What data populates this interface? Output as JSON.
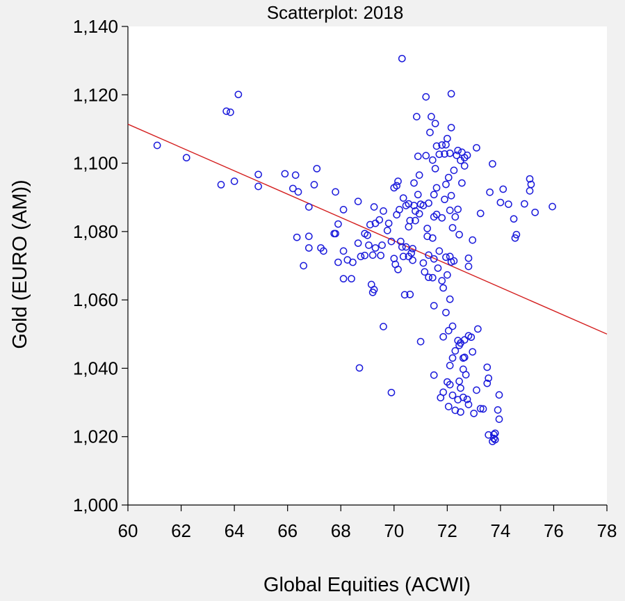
{
  "chart_data": {
    "type": "scatter",
    "title": "Scatterplot: 2018",
    "xlabel": "Global Equities (ACWI)",
    "ylabel": "Gold (EURO (AM))",
    "xlim": [
      60,
      78
    ],
    "ylim": [
      1000,
      1140
    ],
    "x_ticks": [
      60,
      62,
      64,
      66,
      68,
      70,
      72,
      74,
      76,
      78
    ],
    "x_tick_labels": [
      "60",
      "62",
      "64",
      "66",
      "68",
      "70",
      "72",
      "74",
      "76",
      "78"
    ],
    "y_ticks": [
      1000,
      1020,
      1040,
      1060,
      1080,
      1100,
      1120,
      1140
    ],
    "y_tick_labels": [
      "1,000",
      "1,020",
      "1,040",
      "1,060",
      "1,080",
      "1,100",
      "1,120",
      "1,140"
    ],
    "grid": false,
    "colors": {
      "points": "#1a1adb",
      "fit_line": "#d42020",
      "background": "#f1f1f1",
      "plot_area": "#ffffff"
    },
    "series": [
      {
        "marker": "open-circle",
        "points": [
          [
            61.1,
            1105.2
          ],
          [
            62.2,
            1101.6
          ],
          [
            63.5,
            1093.7
          ],
          [
            64.0,
            1094.7
          ],
          [
            63.7,
            1115.2
          ],
          [
            63.85,
            1114.9
          ],
          [
            64.15,
            1120.1
          ],
          [
            64.9,
            1096.7
          ],
          [
            64.9,
            1093.2
          ],
          [
            65.9,
            1096.9
          ],
          [
            66.2,
            1092.6
          ],
          [
            66.3,
            1096.5
          ],
          [
            66.4,
            1091.6
          ],
          [
            66.35,
            1078.3
          ],
          [
            66.6,
            1070.0
          ],
          [
            66.8,
            1087.2
          ],
          [
            66.8,
            1078.6
          ],
          [
            66.8,
            1075.2
          ],
          [
            67.0,
            1093.7
          ],
          [
            67.1,
            1098.4
          ],
          [
            67.25,
            1075.2
          ],
          [
            67.35,
            1074.3
          ],
          [
            67.75,
            1079.4
          ],
          [
            67.8,
            1079.4
          ],
          [
            67.8,
            1091.6
          ],
          [
            67.9,
            1082.2
          ],
          [
            67.9,
            1071.0
          ],
          [
            68.1,
            1074.3
          ],
          [
            68.1,
            1086.4
          ],
          [
            68.1,
            1066.2
          ],
          [
            68.25,
            1071.7
          ],
          [
            68.4,
            1066.2
          ],
          [
            68.45,
            1071.0
          ],
          [
            68.65,
            1088.8
          ],
          [
            68.65,
            1076.6
          ],
          [
            68.75,
            1072.7
          ],
          [
            68.7,
            1040.1
          ],
          [
            68.9,
            1073.0
          ],
          [
            68.9,
            1079.4
          ],
          [
            69.0,
            1078.9
          ],
          [
            69.05,
            1076.0
          ],
          [
            69.1,
            1082.0
          ],
          [
            69.15,
            1064.5
          ],
          [
            69.2,
            1073.1
          ],
          [
            69.25,
            1087.2
          ],
          [
            69.2,
            1062.2
          ],
          [
            69.25,
            1063.0
          ],
          [
            69.3,
            1075.2
          ],
          [
            69.3,
            1082.4
          ],
          [
            69.45,
            1083.4
          ],
          [
            69.5,
            1073.0
          ],
          [
            69.55,
            1076.0
          ],
          [
            69.6,
            1052.2
          ],
          [
            69.6,
            1086.0
          ],
          [
            69.75,
            1080.3
          ],
          [
            69.8,
            1082.4
          ],
          [
            69.9,
            1077.1
          ],
          [
            69.9,
            1032.9
          ],
          [
            70.0,
            1092.8
          ],
          [
            70.0,
            1072.1
          ],
          [
            70.05,
            1070.4
          ],
          [
            70.1,
            1093.4
          ],
          [
            70.1,
            1084.9
          ],
          [
            70.15,
            1094.7
          ],
          [
            70.15,
            1068.9
          ],
          [
            70.2,
            1086.4
          ],
          [
            70.25,
            1077.1
          ],
          [
            70.3,
            1075.5
          ],
          [
            70.35,
            1089.8
          ],
          [
            70.35,
            1072.7
          ],
          [
            70.3,
            1130.6
          ],
          [
            70.45,
            1087.6
          ],
          [
            70.4,
            1061.5
          ],
          [
            70.45,
            1075.5
          ],
          [
            70.55,
            1081.4
          ],
          [
            70.55,
            1088.1
          ],
          [
            70.55,
            1072.7
          ],
          [
            70.6,
            1061.6
          ],
          [
            70.6,
            1083.2
          ],
          [
            70.65,
            1073.7
          ],
          [
            70.7,
            1075.0
          ],
          [
            70.7,
            1071.6
          ],
          [
            70.75,
            1094.2
          ],
          [
            70.75,
            1087.6
          ],
          [
            70.8,
            1086.0
          ],
          [
            70.8,
            1083.2
          ],
          [
            70.85,
            1113.6
          ],
          [
            70.9,
            1102.0
          ],
          [
            70.9,
            1090.8
          ],
          [
            70.95,
            1096.5
          ],
          [
            70.95,
            1085.2
          ],
          [
            71.0,
            1088.0
          ],
          [
            71.0,
            1047.8
          ],
          [
            71.1,
            1087.6
          ],
          [
            71.1,
            1070.8
          ],
          [
            71.15,
            1068.2
          ],
          [
            71.2,
            1119.4
          ],
          [
            71.2,
            1102.2
          ],
          [
            71.25,
            1080.9
          ],
          [
            71.25,
            1078.6
          ],
          [
            71.3,
            1073.1
          ],
          [
            71.3,
            1066.6
          ],
          [
            71.3,
            1088.3
          ],
          [
            71.35,
            1109.0
          ],
          [
            71.4,
            1113.6
          ],
          [
            71.45,
            1100.9
          ],
          [
            71.45,
            1078.1
          ],
          [
            71.45,
            1066.5
          ],
          [
            71.5,
            1084.3
          ],
          [
            71.5,
            1058.3
          ],
          [
            71.5,
            1038.0
          ],
          [
            71.5,
            1090.8
          ],
          [
            71.5,
            1072.0
          ],
          [
            71.55,
            1111.6
          ],
          [
            71.55,
            1098.4
          ],
          [
            71.6,
            1105.0
          ],
          [
            71.6,
            1092.8
          ],
          [
            71.6,
            1085.0
          ],
          [
            71.65,
            1069.3
          ],
          [
            71.7,
            1102.6
          ],
          [
            71.7,
            1074.3
          ],
          [
            71.75,
            1031.4
          ],
          [
            71.8,
            1105.3
          ],
          [
            71.8,
            1084.0
          ],
          [
            71.8,
            1065.6
          ],
          [
            71.85,
            1049.2
          ],
          [
            71.85,
            1063.5
          ],
          [
            71.85,
            1033.0
          ],
          [
            71.9,
            1102.7
          ],
          [
            71.9,
            1089.4
          ],
          [
            71.95,
            1105.4
          ],
          [
            71.95,
            1093.8
          ],
          [
            71.95,
            1072.5
          ],
          [
            71.95,
            1056.3
          ],
          [
            72.0,
            1067.3
          ],
          [
            72.0,
            1107.2
          ],
          [
            72.0,
            1036.0
          ],
          [
            72.05,
            1095.8
          ],
          [
            72.05,
            1051.0
          ],
          [
            72.05,
            1028.8
          ],
          [
            72.1,
            1102.9
          ],
          [
            72.1,
            1086.2
          ],
          [
            72.1,
            1072.7
          ],
          [
            72.1,
            1060.2
          ],
          [
            72.1,
            1040.8
          ],
          [
            72.1,
            1035.2
          ],
          [
            72.15,
            1120.3
          ],
          [
            72.15,
            1110.4
          ],
          [
            72.15,
            1090.5
          ],
          [
            72.15,
            1071.1
          ],
          [
            72.2,
            1081.1
          ],
          [
            72.2,
            1052.3
          ],
          [
            72.2,
            1043.0
          ],
          [
            72.2,
            1032.1
          ],
          [
            72.25,
            1097.9
          ],
          [
            72.25,
            1071.4
          ],
          [
            72.3,
            1045.1
          ],
          [
            72.3,
            1027.7
          ],
          [
            72.3,
            1084.3
          ],
          [
            72.35,
            1102.3
          ],
          [
            72.4,
            1103.7
          ],
          [
            72.4,
            1086.5
          ],
          [
            72.4,
            1048.1
          ],
          [
            72.4,
            1030.8
          ],
          [
            72.45,
            1079.1
          ],
          [
            72.45,
            1046.7
          ],
          [
            72.45,
            1036.2
          ],
          [
            72.5,
            1100.8
          ],
          [
            72.5,
            1027.2
          ],
          [
            72.5,
            1047.4
          ],
          [
            72.5,
            1034.2
          ],
          [
            72.55,
            1094.2
          ],
          [
            72.55,
            1103.2
          ],
          [
            72.6,
            1043.0
          ],
          [
            72.6,
            1039.7
          ],
          [
            72.6,
            1031.5
          ],
          [
            72.65,
            1099.2
          ],
          [
            72.65,
            1101.6
          ],
          [
            72.65,
            1048.3
          ],
          [
            72.65,
            1043.2
          ],
          [
            72.7,
            1038.1
          ],
          [
            72.75,
            1030.9
          ],
          [
            72.75,
            1102.3
          ],
          [
            72.8,
            1072.2
          ],
          [
            72.8,
            1069.8
          ],
          [
            72.8,
            1049.5
          ],
          [
            72.8,
            1029.4
          ],
          [
            72.9,
            1049.1
          ],
          [
            72.95,
            1077.5
          ],
          [
            72.95,
            1044.8
          ],
          [
            73.0,
            1026.8
          ],
          [
            73.1,
            1104.5
          ],
          [
            73.1,
            1033.6
          ],
          [
            73.15,
            1051.5
          ],
          [
            73.25,
            1085.3
          ],
          [
            73.25,
            1028.2
          ],
          [
            73.35,
            1028.1
          ],
          [
            73.5,
            1040.3
          ],
          [
            73.5,
            1035.6
          ],
          [
            73.55,
            1037.1
          ],
          [
            73.55,
            1020.5
          ],
          [
            73.6,
            1091.5
          ],
          [
            73.7,
            1099.8
          ],
          [
            73.7,
            1018.6
          ],
          [
            73.75,
            1020.6
          ],
          [
            73.75,
            1019.5
          ],
          [
            73.8,
            1019.1
          ],
          [
            73.8,
            1021.0
          ],
          [
            73.9,
            1027.8
          ],
          [
            73.95,
            1025.1
          ],
          [
            73.95,
            1032.2
          ],
          [
            74.0,
            1088.5
          ],
          [
            74.1,
            1092.4
          ],
          [
            74.3,
            1088.0
          ],
          [
            74.5,
            1083.7
          ],
          [
            74.55,
            1078.1
          ],
          [
            74.6,
            1079.1
          ],
          [
            74.9,
            1088.1
          ],
          [
            75.1,
            1095.4
          ],
          [
            75.1,
            1091.9
          ],
          [
            75.15,
            1093.8
          ],
          [
            75.3,
            1085.6
          ],
          [
            75.95,
            1087.3
          ]
        ]
      }
    ],
    "fit_line": {
      "x": [
        60,
        78
      ],
      "y": [
        1111.4,
        1050.0
      ]
    }
  }
}
